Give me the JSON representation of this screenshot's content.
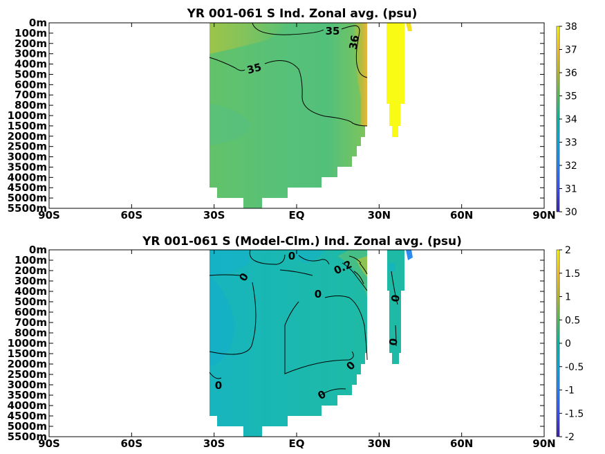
{
  "chart_data": [
    {
      "type": "heatmap",
      "title": "YR 001-061 S Ind. Zonal avg. (psu)",
      "x_ticks": [
        "90S",
        "60S",
        "30S",
        "EQ",
        "30N",
        "60N",
        "90N"
      ],
      "x_values": [
        -90,
        -60,
        -30,
        0,
        30,
        60,
        90
      ],
      "y_ticks": [
        "0m",
        "100m",
        "200m",
        "300m",
        "400m",
        "500m",
        "600m",
        "700m",
        "800m",
        "1000m",
        "1500m",
        "2000m",
        "2500m",
        "3000m",
        "3500m",
        "4000m",
        "4500m",
        "5000m",
        "5500m"
      ],
      "colorbar": {
        "min": 30,
        "max": 38,
        "ticks": [
          "38",
          "37",
          "36",
          "35",
          "34",
          "33",
          "32",
          "31",
          "30"
        ]
      },
      "contour_labels": [
        "35",
        "36",
        "35"
      ],
      "grid": false
    },
    {
      "type": "heatmap",
      "title": "YR 001-061 S (Model-Clm.) Ind. Zonal avg. (psu)",
      "x_ticks": [
        "90S",
        "60S",
        "30S",
        "EQ",
        "30N",
        "60N",
        "90N"
      ],
      "x_values": [
        -90,
        -60,
        -30,
        0,
        30,
        60,
        90
      ],
      "y_ticks": [
        "0m",
        "100m",
        "200m",
        "300m",
        "400m",
        "500m",
        "600m",
        "700m",
        "800m",
        "1000m",
        "1500m",
        "2000m",
        "2500m",
        "3000m",
        "3500m",
        "4000m",
        "4500m",
        "5000m",
        "5500m"
      ],
      "colorbar": {
        "min": -2,
        "max": 2,
        "ticks": [
          "2",
          "1.5",
          "1",
          "0.5",
          "0",
          "-0.5",
          "-1",
          "-1.5",
          "-2"
        ]
      },
      "contour_labels": [
        "0",
        "0.2",
        "0",
        "0",
        "0",
        "0",
        "0",
        "0",
        "0"
      ],
      "grid": false
    }
  ]
}
